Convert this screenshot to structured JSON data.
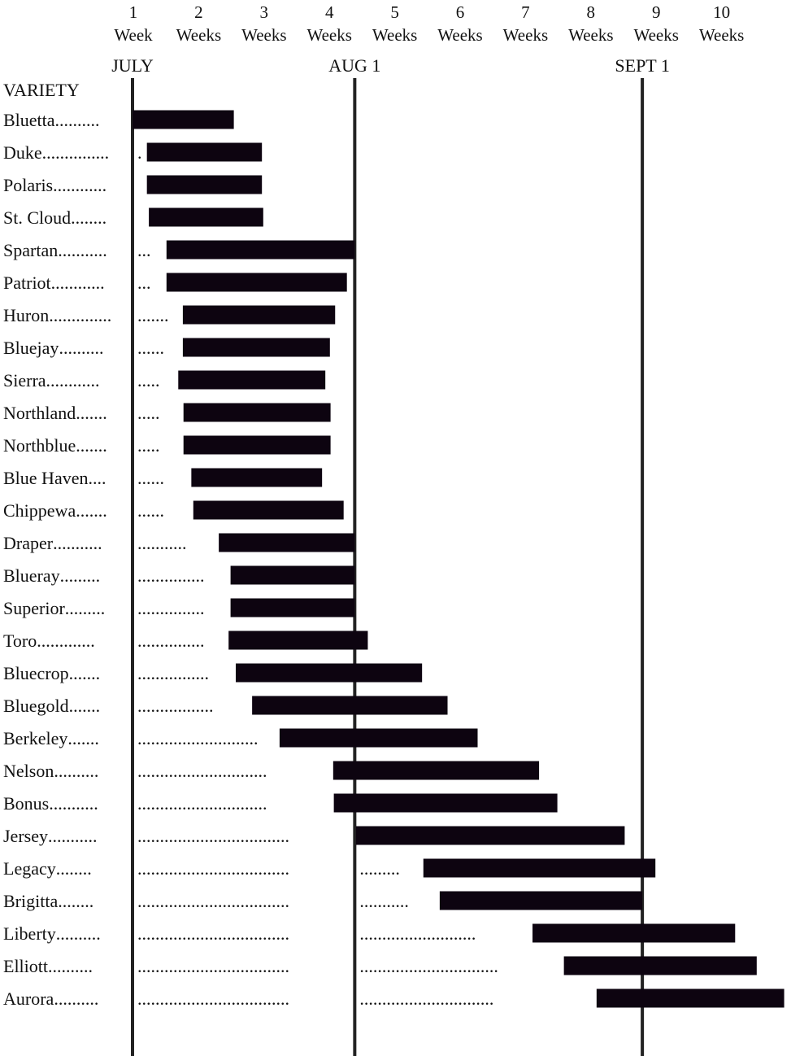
{
  "chart_data": {
    "type": "bar",
    "subtype": "range-gantt",
    "week_ticks": [
      {
        "number": "1",
        "unit": "Week"
      },
      {
        "number": "2",
        "unit": "Weeks"
      },
      {
        "number": "3",
        "unit": "Weeks"
      },
      {
        "number": "4",
        "unit": "Weeks"
      },
      {
        "number": "5",
        "unit": "Weeks"
      },
      {
        "number": "6",
        "unit": "Weeks"
      },
      {
        "number": "7",
        "unit": "Weeks"
      },
      {
        "number": "8",
        "unit": "Weeks"
      },
      {
        "number": "9",
        "unit": "Weeks"
      },
      {
        "number": "10",
        "unit": "Weeks"
      }
    ],
    "month_markers": [
      {
        "label": "JULY",
        "week": 1.0
      },
      {
        "label": "AUG 1",
        "week": 4.4
      },
      {
        "label": "SEPT 1",
        "week": 8.8
      }
    ],
    "category_header": "VARIETY",
    "xlim": [
      1,
      10
    ],
    "bar_color": "#0d0410",
    "varieties": [
      {
        "name": "Bluetta",
        "dots_a": "..........",
        "dots_b": "",
        "dots_c": "",
        "start": 1.0,
        "end": 2.55
      },
      {
        "name": "Duke",
        "dots_a": "...............",
        "dots_b": ".",
        "dots_c": "",
        "start": 1.22,
        "end": 2.98
      },
      {
        "name": "Polaris",
        "dots_a": "............",
        "dots_b": "",
        "dots_c": "",
        "start": 1.22,
        "end": 2.98
      },
      {
        "name": "St. Cloud",
        "dots_a": "........",
        "dots_b": "",
        "dots_c": "",
        "start": 1.25,
        "end": 3.0
      },
      {
        "name": "Spartan",
        "dots_a": "...........",
        "dots_b": "...",
        "dots_c": "",
        "start": 1.52,
        "end": 4.4
      },
      {
        "name": "Patriot",
        "dots_a": "............",
        "dots_b": "...",
        "dots_c": "",
        "start": 1.52,
        "end": 4.28
      },
      {
        "name": "Huron",
        "dots_a": "..............",
        "dots_b": ".......",
        "dots_c": "",
        "start": 1.77,
        "end": 4.1
      },
      {
        "name": "Bluejay",
        "dots_a": "..........",
        "dots_b": "......",
        "dots_c": "",
        "start": 1.77,
        "end": 4.02
      },
      {
        "name": "Sierra",
        "dots_a": "............",
        "dots_b": ".....",
        "dots_c": "",
        "start": 1.7,
        "end": 3.95
      },
      {
        "name": "Northland",
        "dots_a": ".......",
        "dots_b": ".....",
        "dots_c": "",
        "start": 1.78,
        "end": 4.03
      },
      {
        "name": "Northblue",
        "dots_a": ".......",
        "dots_b": ".....",
        "dots_c": "",
        "start": 1.78,
        "end": 4.03
      },
      {
        "name": "Blue Haven",
        "dots_a": "....",
        "dots_b": "......",
        "dots_c": "",
        "start": 1.9,
        "end": 3.9
      },
      {
        "name": "Chippewa",
        "dots_a": ".......",
        "dots_b": "......",
        "dots_c": "",
        "start": 1.93,
        "end": 4.23
      },
      {
        "name": "Draper",
        "dots_a": "...........",
        "dots_b": "...........",
        "dots_c": "",
        "start": 2.32,
        "end": 4.4
      },
      {
        "name": "Blueray",
        "dots_a": ".........",
        "dots_b": "...............",
        "dots_c": "",
        "start": 2.5,
        "end": 4.4
      },
      {
        "name": "Superior",
        "dots_a": ".........",
        "dots_b": "...............",
        "dots_c": "",
        "start": 2.5,
        "end": 4.4
      },
      {
        "name": "Toro",
        "dots_a": ".............",
        "dots_b": "...............",
        "dots_c": "",
        "start": 2.47,
        "end": 4.6
      },
      {
        "name": "Bluecrop",
        "dots_a": ".......",
        "dots_b": "................",
        "dots_c": "",
        "start": 2.58,
        "end": 5.43
      },
      {
        "name": "Bluegold",
        "dots_a": ".......",
        "dots_b": ".................",
        "dots_c": "",
        "start": 2.83,
        "end": 5.82
      },
      {
        "name": "Berkeley",
        "dots_a": ".......",
        "dots_b": "...........................",
        "dots_c": "",
        "start": 3.25,
        "end": 6.28
      },
      {
        "name": "Nelson",
        "dots_a": "..........",
        "dots_b": ".............................",
        "dots_c": "",
        "start": 4.07,
        "end": 7.22
      },
      {
        "name": "Bonus",
        "dots_a": "...........",
        "dots_b": ".............................",
        "dots_c": "",
        "start": 4.08,
        "end": 7.5
      },
      {
        "name": "Jersey",
        "dots_a": "...........",
        "dots_b": "..................................",
        "dots_c": "",
        "start": 4.42,
        "end": 8.53
      },
      {
        "name": "Legacy",
        "dots_a": "........",
        "dots_b": "..................................",
        "dots_c": ".........",
        "start": 5.45,
        "end": 9.0
      },
      {
        "name": "Brigitta",
        "dots_a": "........",
        "dots_b": "..................................",
        "dots_c": "...........",
        "start": 5.7,
        "end": 8.8
      },
      {
        "name": "Liberty",
        "dots_a": "..........",
        "dots_b": "..................................",
        "dots_c": "..........................",
        "start": 7.12,
        "end": 10.22
      },
      {
        "name": "Elliott",
        "dots_a": "..........",
        "dots_b": "..................................",
        "dots_c": "...............................",
        "start": 7.6,
        "end": 10.55
      },
      {
        "name": "Aurora",
        "dots_a": "..........",
        "dots_b": "..................................",
        "dots_c": "..............................",
        "start": 8.1,
        "end": 10.97
      }
    ]
  }
}
